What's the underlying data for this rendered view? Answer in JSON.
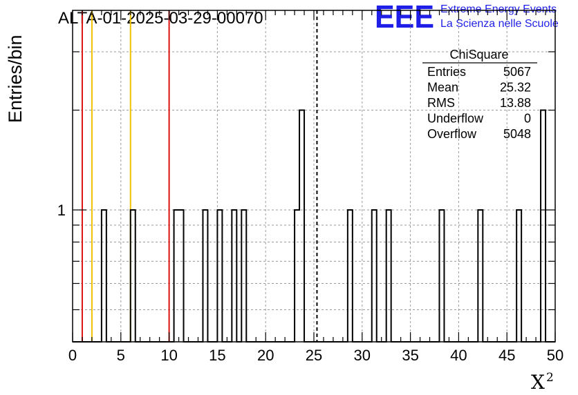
{
  "chart_data": {
    "type": "bar",
    "title": "ALTA-01-2025-03-29-00070",
    "xlabel": "X",
    "xlabel_superscript": "2",
    "ylabel": "Entries/bin",
    "xlim": [
      0,
      50
    ],
    "y_log_scale": true,
    "ylim": [
      0.4,
      4
    ],
    "x_tick_labels": [
      "0",
      "5",
      "10",
      "15",
      "20",
      "25",
      "30",
      "35",
      "40",
      "45",
      "50"
    ],
    "y_tick_labels": [
      "1"
    ],
    "grid": true,
    "bin_width": 0.5,
    "bins": [
      {
        "x": 3.0,
        "count": 1
      },
      {
        "x": 6.0,
        "count": 1
      },
      {
        "x": 10.5,
        "count": 1
      },
      {
        "x": 11.0,
        "count": 1
      },
      {
        "x": 13.5,
        "count": 1
      },
      {
        "x": 15.0,
        "count": 1
      },
      {
        "x": 16.5,
        "count": 1
      },
      {
        "x": 17.5,
        "count": 1
      },
      {
        "x": 23.0,
        "count": 1
      },
      {
        "x": 23.5,
        "count": 2
      },
      {
        "x": 28.5,
        "count": 1
      },
      {
        "x": 31.0,
        "count": 1
      },
      {
        "x": 32.5,
        "count": 1
      },
      {
        "x": 38.0,
        "count": 1
      },
      {
        "x": 42.0,
        "count": 1
      },
      {
        "x": 46.0,
        "count": 1
      },
      {
        "x": 48.5,
        "count": 2
      }
    ],
    "vertical_lines": [
      {
        "x": 1.0,
        "color": "#dd1111",
        "style": "solid"
      },
      {
        "x": 2.0,
        "color": "#f2c200",
        "style": "solid"
      },
      {
        "x": 6.0,
        "color": "#f2c200",
        "style": "solid"
      },
      {
        "x": 10.0,
        "color": "#dd1111",
        "style": "solid"
      },
      {
        "x": 25.32,
        "color": "#000000",
        "style": "dashed"
      }
    ],
    "stats_box": {
      "title": "ChiSquare",
      "rows": [
        {
          "label": "Entries",
          "value": "5067"
        },
        {
          "label": "Mean",
          "value": "25.32"
        },
        {
          "label": "RMS",
          "value": "13.88"
        },
        {
          "label": "Underflow",
          "value": "0"
        },
        {
          "label": "Overflow",
          "value": "5048"
        }
      ]
    }
  },
  "logo": {
    "mark": "EEE",
    "line1": "Extreme Energy Events",
    "line2": "La Scienza nelle Scuole",
    "color": "#1f1fe8"
  }
}
